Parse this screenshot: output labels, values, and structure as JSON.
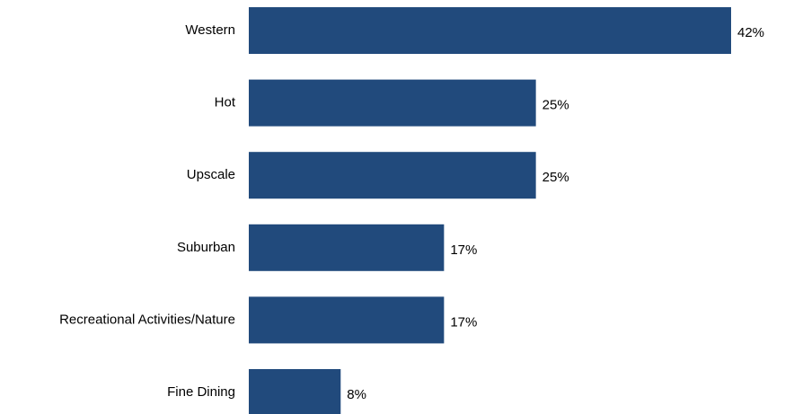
{
  "chart_data": {
    "type": "bar",
    "orientation": "horizontal",
    "categories": [
      "Western",
      "Hot",
      "Upscale",
      "Suburban",
      "Recreational Activities/Nature",
      "Fine Dining"
    ],
    "values": [
      42,
      25,
      25,
      17,
      17,
      8
    ],
    "value_labels": [
      "42%",
      "25%",
      "25%",
      "17%",
      "17%",
      "8%"
    ],
    "title": "",
    "xlabel": "",
    "ylabel": "",
    "xlim": [
      0,
      42
    ],
    "grid": false,
    "legend": "none",
    "bar_color": "#214a7c"
  }
}
